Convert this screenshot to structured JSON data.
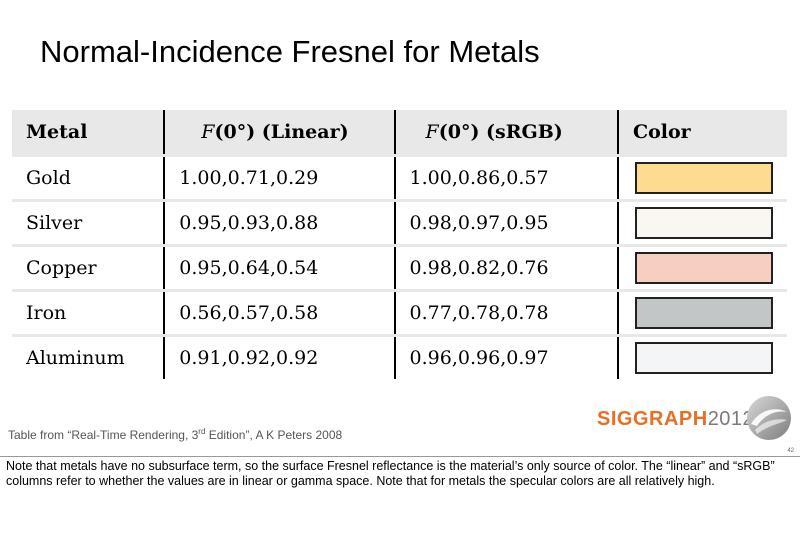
{
  "slide": {
    "title": "Normal-Incidence Fresnel for Metals",
    "credit_before": "Table from “Real-Time Rendering, 3",
    "credit_sup": "rd",
    "credit_after": " Edition”, A K Peters 2008",
    "page_number": "42"
  },
  "table": {
    "headers": {
      "metal": "Metal",
      "linear_f": "F",
      "linear_rest": "(0°)  (Linear)",
      "srgb_f": "F",
      "srgb_rest": "(0°)  (sRGB)",
      "color": "Color"
    },
    "rows": [
      {
        "metal": "Gold",
        "linear": "1.00,0.71,0.29",
        "srgb": "1.00,0.86,0.57",
        "swatch": "#fddc91"
      },
      {
        "metal": "Silver",
        "linear": "0.95,0.93,0.88",
        "srgb": "0.98,0.97,0.95",
        "swatch": "#faf7f2"
      },
      {
        "metal": "Copper",
        "linear": "0.95,0.64,0.54",
        "srgb": "0.98,0.82,0.76",
        "swatch": "#f6cfc0"
      },
      {
        "metal": "Iron",
        "linear": "0.56,0.57,0.58",
        "srgb": "0.77,0.78,0.78",
        "swatch": "#c3c6c6"
      },
      {
        "metal": "Aluminum",
        "linear": "0.91,0.92,0.92",
        "srgb": "0.96,0.96,0.97",
        "swatch": "#f4f5f7"
      }
    ]
  },
  "logo": {
    "brand": "SIGGRAPH",
    "year": "2012",
    "brand_color": "#e86f24",
    "mark_icon": "siggraph-swirl-icon"
  },
  "notes": {
    "text": "Note that metals have no subsurface term, so the surface Fresnel reflectance is the material’s only source of color. The “linear” and “sRGB” columns refer to whether the values are in linear or gamma space. Note that for metals the specular colors are all relatively high."
  }
}
